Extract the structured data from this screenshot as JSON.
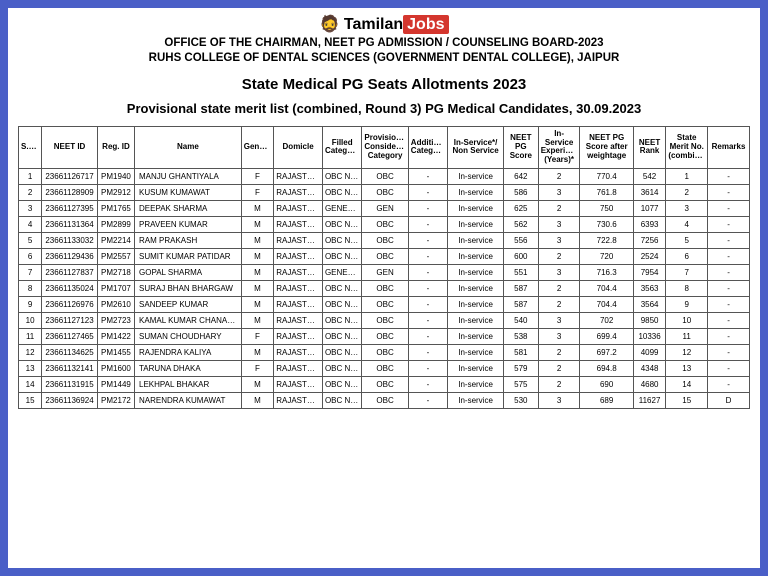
{
  "logo": {
    "left": "Tamilan",
    "right": "Jobs"
  },
  "header": {
    "line1": "OFFICE OF THE CHAIRMAN, NEET PG ADMISSION / COUNSELING BOARD-2023",
    "line2": "RUHS COLLEGE OF DENTAL SCIENCES (GOVERNMENT DENTAL COLLEGE), JAIPUR"
  },
  "title1": "State Medical PG Seats Allotments 2023",
  "title2": "Provisional state merit list (combined, Round 3) PG Medical Candidates, 30.09.2023",
  "columns": [
    "S.No.",
    "NEET ID",
    "Reg. ID",
    "Name",
    "Gender",
    "Domicle",
    "Filled Category",
    "Provisional Considered Category",
    "Additional Category",
    "In-Service*/ Non Service",
    "NEET PG Score",
    "In-Service Experience (Years)*",
    "NEET PG Score after weightage",
    "NEET Rank",
    "State Merit No. (combined)",
    "Remarks"
  ],
  "rows": [
    [
      "1",
      "23661126717",
      "PM1940",
      "MANJU GHANTIYALA",
      "F",
      "RAJASTHAN",
      "OBC NCL",
      "OBC",
      "-",
      "In-service",
      "642",
      "2",
      "770.4",
      "542",
      "1",
      "-"
    ],
    [
      "2",
      "23661128909",
      "PM2912",
      "KUSUM KUMAWAT",
      "F",
      "RAJASTHAN",
      "OBC NCL",
      "OBC",
      "-",
      "In-service",
      "586",
      "3",
      "761.8",
      "3614",
      "2",
      "-"
    ],
    [
      "3",
      "23661127395",
      "PM1765",
      "DEEPAK SHARMA",
      "M",
      "RAJASTHAN",
      "GENERAL",
      "GEN",
      "-",
      "In-service",
      "625",
      "2",
      "750",
      "1077",
      "3",
      "-"
    ],
    [
      "4",
      "23661131364",
      "PM2899",
      "PRAVEEN KUMAR",
      "M",
      "RAJASTHAN",
      "OBC NCL",
      "OBC",
      "-",
      "In-service",
      "562",
      "3",
      "730.6",
      "6393",
      "4",
      "-"
    ],
    [
      "5",
      "23661133032",
      "PM2214",
      "RAM PRAKASH",
      "M",
      "RAJASTHAN",
      "OBC NCL",
      "OBC",
      "-",
      "In-service",
      "556",
      "3",
      "722.8",
      "7256",
      "5",
      "-"
    ],
    [
      "6",
      "23661129436",
      "PM2557",
      "SUMIT KUMAR PATIDAR",
      "M",
      "RAJASTHAN",
      "OBC NCL",
      "OBC",
      "-",
      "In-service",
      "600",
      "2",
      "720",
      "2524",
      "6",
      "-"
    ],
    [
      "7",
      "23661127837",
      "PM2718",
      "GOPAL SHARMA",
      "M",
      "RAJASTHAN",
      "GENERAL",
      "GEN",
      "-",
      "In-service",
      "551",
      "3",
      "716.3",
      "7954",
      "7",
      "-"
    ],
    [
      "8",
      "23661135024",
      "PM1707",
      "SURAJ BHAN BHARGAW",
      "M",
      "RAJASTHAN",
      "OBC NCL",
      "OBC",
      "-",
      "In-service",
      "587",
      "2",
      "704.4",
      "3563",
      "8",
      "-"
    ],
    [
      "9",
      "23661126976",
      "PM2610",
      "SANDEEP KUMAR",
      "M",
      "RAJASTHAN",
      "OBC NCL",
      "OBC",
      "-",
      "In-service",
      "587",
      "2",
      "704.4",
      "3564",
      "9",
      "-"
    ],
    [
      "10",
      "23661127123",
      "PM2723",
      "KAMAL KUMAR CHANANG",
      "M",
      "RAJASTHAN",
      "OBC NCL",
      "OBC",
      "-",
      "In-service",
      "540",
      "3",
      "702",
      "9850",
      "10",
      "-"
    ],
    [
      "11",
      "23661127465",
      "PM1422",
      "SUMAN CHOUDHARY",
      "F",
      "RAJASTHAN",
      "OBC NCL",
      "OBC",
      "-",
      "In-service",
      "538",
      "3",
      "699.4",
      "10336",
      "11",
      "-"
    ],
    [
      "12",
      "23661134625",
      "PM1455",
      "RAJENDRA KALIYA",
      "M",
      "RAJASTHAN",
      "OBC NCL",
      "OBC",
      "-",
      "In-service",
      "581",
      "2",
      "697.2",
      "4099",
      "12",
      "-"
    ],
    [
      "13",
      "23661132141",
      "PM1600",
      "TARUNA DHAKA",
      "F",
      "RAJASTHAN",
      "OBC NCL",
      "OBC",
      "-",
      "In-service",
      "579",
      "2",
      "694.8",
      "4348",
      "13",
      "-"
    ],
    [
      "14",
      "23661131915",
      "PM1449",
      "LEKHPAL BHAKAR",
      "M",
      "RAJASTHAN",
      "OBC NCL",
      "OBC",
      "-",
      "In-service",
      "575",
      "2",
      "690",
      "4680",
      "14",
      "-"
    ],
    [
      "15",
      "23661136924",
      "PM2172",
      "NARENDRA KUMAWAT",
      "M",
      "RAJASTHAN",
      "OBC NCL",
      "OBC",
      "-",
      "In-service",
      "530",
      "3",
      "689",
      "11627",
      "15",
      "D"
    ]
  ],
  "col_classes": [
    "c-sno",
    "c-neet",
    "c-reg",
    "c-name",
    "c-gen",
    "c-dom",
    "c-fcat",
    "c-pcat",
    "c-acat",
    "c-svc",
    "c-score",
    "c-exp",
    "c-wscore",
    "c-rank",
    "c-merit",
    "c-rem"
  ]
}
